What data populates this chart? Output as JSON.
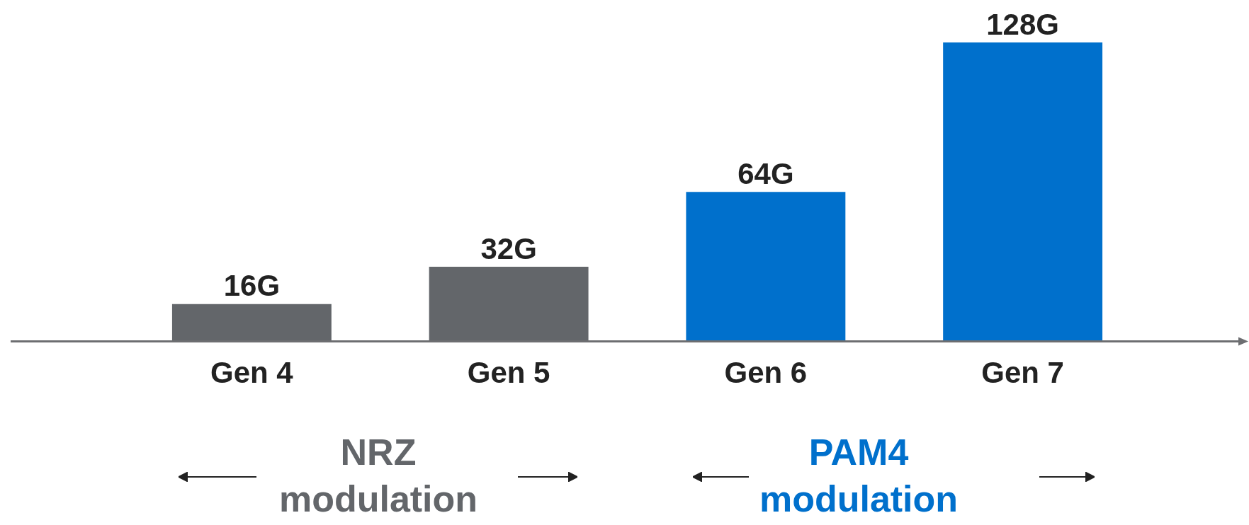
{
  "chart_data": {
    "type": "bar",
    "categories": [
      "Gen 4",
      "Gen 5",
      "Gen 6",
      "Gen 7"
    ],
    "values": [
      16,
      32,
      64,
      128
    ],
    "colors": [
      "#63666a",
      "#63666a",
      "#0070cc",
      "#0070cc"
    ],
    "value_labels": [
      "16G",
      "32G",
      "64G",
      "128G"
    ],
    "annotations": [
      "NRZ\nmodulation",
      "PAM4\nmodulation"
    ],
    "legend": false,
    "grid": false
  }
}
